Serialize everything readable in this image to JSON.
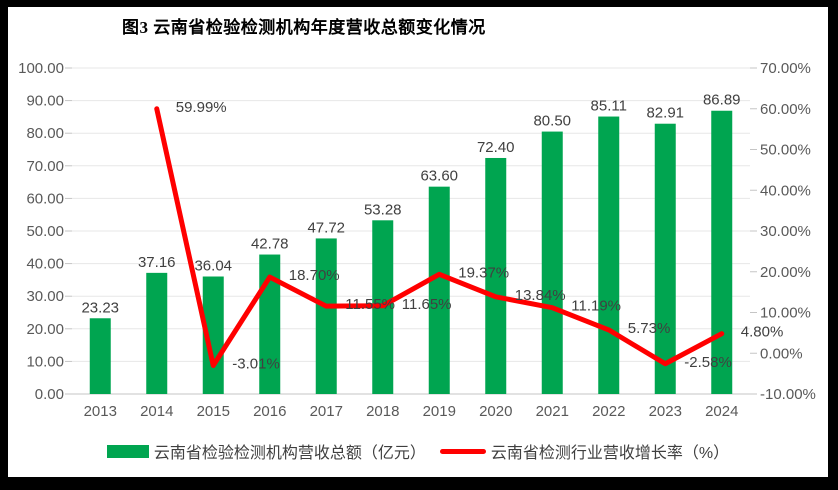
{
  "title": "图3  云南省检验检测机构年度营收总额变化情况",
  "colors": {
    "bar": "#00A550",
    "line": "#FF0000",
    "grid": "#E7E7E7",
    "axis_line": "#C5C5C5",
    "axis_text": "#595959",
    "label_text": "#404040",
    "title_text": "#000000",
    "frame": "#000000",
    "background": "#FFFFFF"
  },
  "chart_data": {
    "type": "bar+line combo",
    "title": "图3  云南省检验检测机构年度营收总额变化情况",
    "categories": [
      "2013",
      "2014",
      "2015",
      "2016",
      "2017",
      "2018",
      "2019",
      "2020",
      "2021",
      "2022",
      "2023",
      "2024"
    ],
    "series": [
      {
        "name": "云南省检验检测机构营收总额（亿元）",
        "type": "bar",
        "axis": "left",
        "values": [
          23.23,
          37.16,
          36.04,
          42.78,
          47.72,
          53.28,
          63.6,
          72.4,
          80.5,
          85.11,
          82.91,
          86.89
        ],
        "labels": [
          "23.23",
          "37.16",
          "36.04",
          "42.78",
          "47.72",
          "53.28",
          "63.60",
          "72.40",
          "80.50",
          "85.11",
          "82.91",
          "86.89"
        ]
      },
      {
        "name": "云南省检测行业营收增长率（%）",
        "type": "line",
        "axis": "right",
        "values": [
          null,
          59.99,
          -3.01,
          18.7,
          11.55,
          11.65,
          19.37,
          13.84,
          11.19,
          5.73,
          -2.58,
          4.8
        ],
        "labels": [
          "",
          "59.99%",
          "-3.01%",
          "18.70%",
          "11.55%",
          "11.65%",
          "19.37%",
          "13.84%",
          "11.19%",
          "5.73%",
          "-2.58%",
          "4.80%"
        ]
      }
    ],
    "left_axis": {
      "min": 0,
      "max": 100,
      "ticks": [
        "100.00",
        "90.00",
        "80.00",
        "70.00",
        "60.00",
        "50.00",
        "40.00",
        "30.00",
        "20.00",
        "10.00",
        "0.00"
      ]
    },
    "right_axis": {
      "min": -10,
      "max": 70,
      "ticks": [
        "70.00%",
        "60.00%",
        "50.00%",
        "40.00%",
        "30.00%",
        "20.00%",
        "10.00%",
        "0.00%",
        "-10.00%"
      ]
    },
    "grid": true,
    "legend_position": "bottom",
    "legend": [
      "云南省检验检测机构营收总额（亿元）",
      "云南省检测行业营收增长率（%）"
    ]
  }
}
